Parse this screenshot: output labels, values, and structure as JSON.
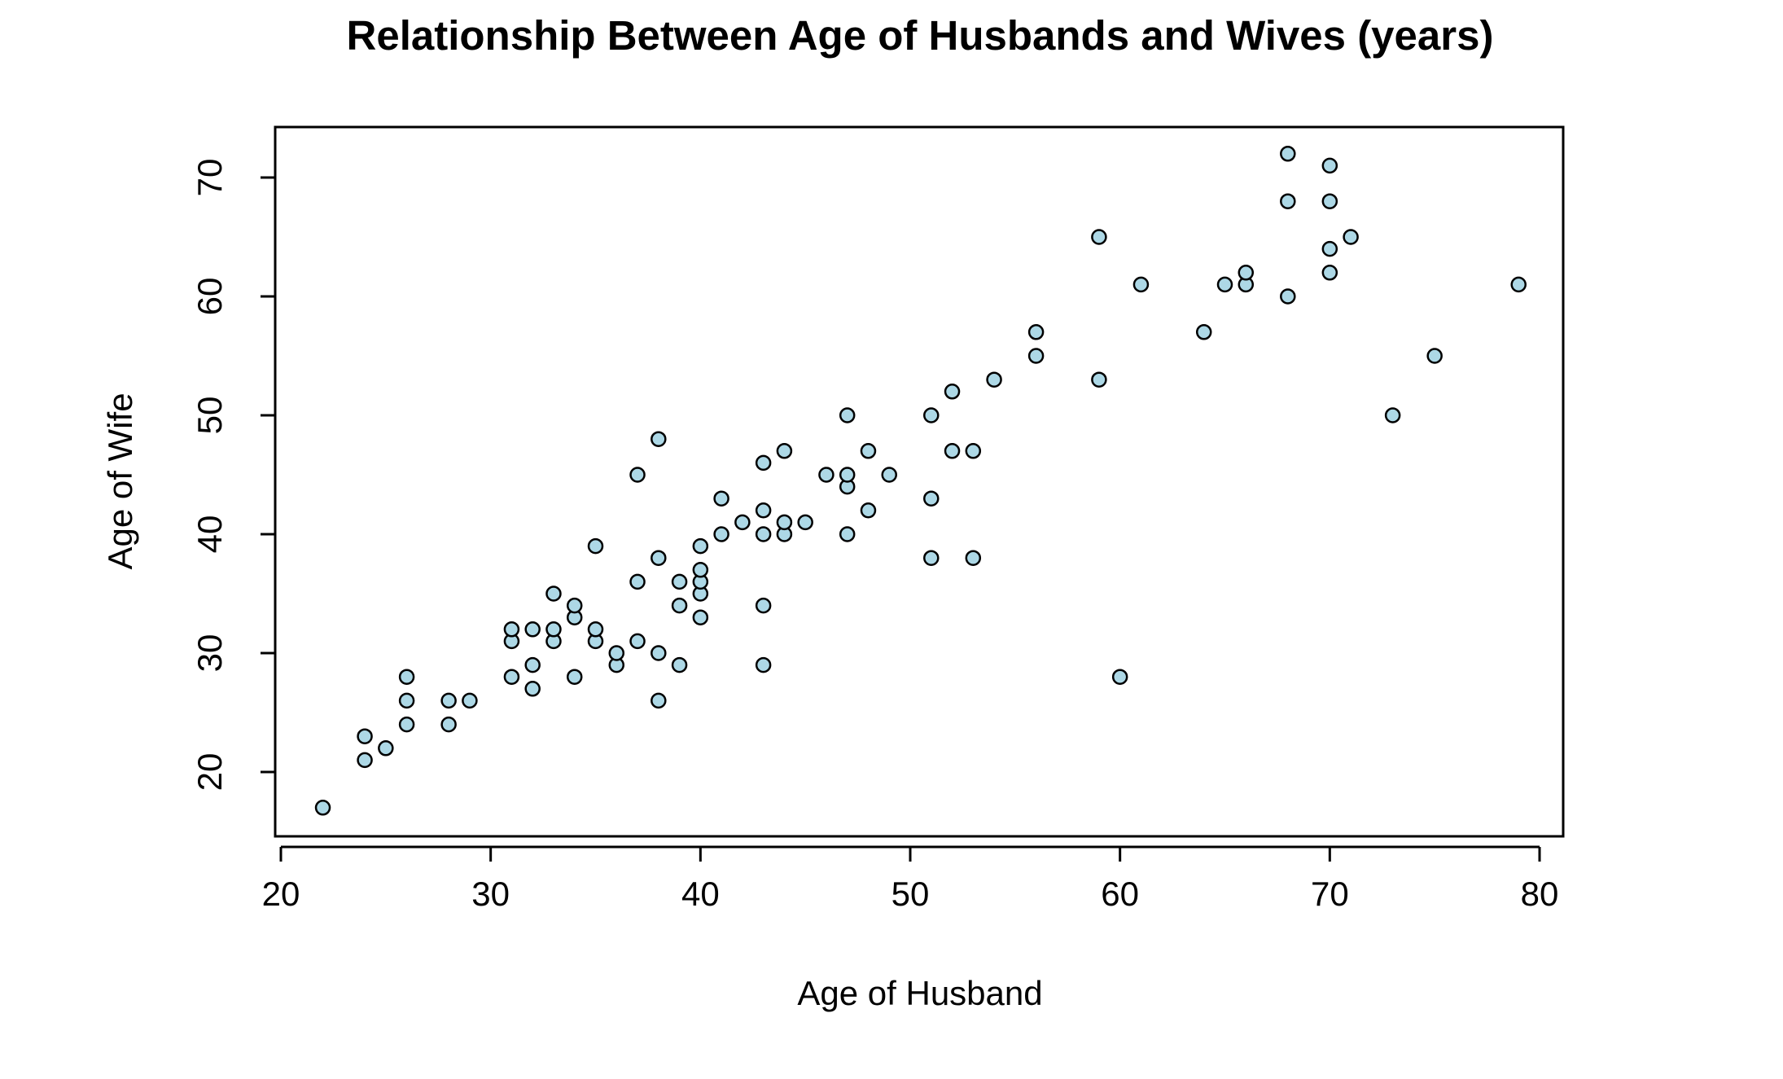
{
  "chart_data": {
    "type": "scatter",
    "title": "Relationship Between Age of Husbands and Wives (years)",
    "xlabel": "Age of Husband",
    "ylabel": "Age of Wife",
    "xlim": [
      20,
      80
    ],
    "ylim": [
      20,
      70
    ],
    "x_ticks": [
      "20",
      "30",
      "40",
      "50",
      "60",
      "70",
      "80"
    ],
    "y_ticks": [
      "20",
      "30",
      "40",
      "50",
      "60",
      "70"
    ],
    "grid": false,
    "legend": "none",
    "point_fill": "#add8e6",
    "point_stroke": "#000000",
    "points": [
      {
        "x": 22,
        "y": 17
      },
      {
        "x": 24,
        "y": 21
      },
      {
        "x": 24,
        "y": 23
      },
      {
        "x": 25,
        "y": 22
      },
      {
        "x": 26,
        "y": 24
      },
      {
        "x": 26,
        "y": 26
      },
      {
        "x": 26,
        "y": 28
      },
      {
        "x": 28,
        "y": 24
      },
      {
        "x": 28,
        "y": 26
      },
      {
        "x": 29,
        "y": 26
      },
      {
        "x": 31,
        "y": 28
      },
      {
        "x": 31,
        "y": 31
      },
      {
        "x": 31,
        "y": 32
      },
      {
        "x": 32,
        "y": 27
      },
      {
        "x": 32,
        "y": 29
      },
      {
        "x": 32,
        "y": 32
      },
      {
        "x": 33,
        "y": 31
      },
      {
        "x": 33,
        "y": 32
      },
      {
        "x": 33,
        "y": 35
      },
      {
        "x": 34,
        "y": 28
      },
      {
        "x": 34,
        "y": 33
      },
      {
        "x": 34,
        "y": 34
      },
      {
        "x": 35,
        "y": 31
      },
      {
        "x": 35,
        "y": 32
      },
      {
        "x": 35,
        "y": 39
      },
      {
        "x": 36,
        "y": 29
      },
      {
        "x": 36,
        "y": 30
      },
      {
        "x": 37,
        "y": 31
      },
      {
        "x": 37,
        "y": 36
      },
      {
        "x": 37,
        "y": 45
      },
      {
        "x": 38,
        "y": 26
      },
      {
        "x": 38,
        "y": 30
      },
      {
        "x": 38,
        "y": 38
      },
      {
        "x": 38,
        "y": 48
      },
      {
        "x": 39,
        "y": 29
      },
      {
        "x": 39,
        "y": 34
      },
      {
        "x": 39,
        "y": 36
      },
      {
        "x": 40,
        "y": 33
      },
      {
        "x": 40,
        "y": 35
      },
      {
        "x": 40,
        "y": 36
      },
      {
        "x": 40,
        "y": 37
      },
      {
        "x": 40,
        "y": 39
      },
      {
        "x": 41,
        "y": 40
      },
      {
        "x": 41,
        "y": 43
      },
      {
        "x": 42,
        "y": 41
      },
      {
        "x": 43,
        "y": 29
      },
      {
        "x": 43,
        "y": 34
      },
      {
        "x": 43,
        "y": 40
      },
      {
        "x": 43,
        "y": 42
      },
      {
        "x": 43,
        "y": 46
      },
      {
        "x": 44,
        "y": 40
      },
      {
        "x": 44,
        "y": 41
      },
      {
        "x": 44,
        "y": 47
      },
      {
        "x": 45,
        "y": 41
      },
      {
        "x": 46,
        "y": 45
      },
      {
        "x": 47,
        "y": 40
      },
      {
        "x": 47,
        "y": 44
      },
      {
        "x": 47,
        "y": 45
      },
      {
        "x": 47,
        "y": 50
      },
      {
        "x": 48,
        "y": 42
      },
      {
        "x": 48,
        "y": 47
      },
      {
        "x": 49,
        "y": 45
      },
      {
        "x": 51,
        "y": 38
      },
      {
        "x": 51,
        "y": 43
      },
      {
        "x": 51,
        "y": 50
      },
      {
        "x": 52,
        "y": 47
      },
      {
        "x": 52,
        "y": 52
      },
      {
        "x": 53,
        "y": 38
      },
      {
        "x": 53,
        "y": 47
      },
      {
        "x": 54,
        "y": 53
      },
      {
        "x": 56,
        "y": 55
      },
      {
        "x": 56,
        "y": 57
      },
      {
        "x": 59,
        "y": 53
      },
      {
        "x": 59,
        "y": 65
      },
      {
        "x": 60,
        "y": 28
      },
      {
        "x": 61,
        "y": 61
      },
      {
        "x": 64,
        "y": 57
      },
      {
        "x": 65,
        "y": 61
      },
      {
        "x": 66,
        "y": 61
      },
      {
        "x": 66,
        "y": 62
      },
      {
        "x": 68,
        "y": 60
      },
      {
        "x": 68,
        "y": 68
      },
      {
        "x": 68,
        "y": 72
      },
      {
        "x": 70,
        "y": 62
      },
      {
        "x": 70,
        "y": 64
      },
      {
        "x": 70,
        "y": 68
      },
      {
        "x": 70,
        "y": 71
      },
      {
        "x": 71,
        "y": 65
      },
      {
        "x": 73,
        "y": 50
      },
      {
        "x": 75,
        "y": 55
      },
      {
        "x": 79,
        "y": 61
      }
    ]
  }
}
